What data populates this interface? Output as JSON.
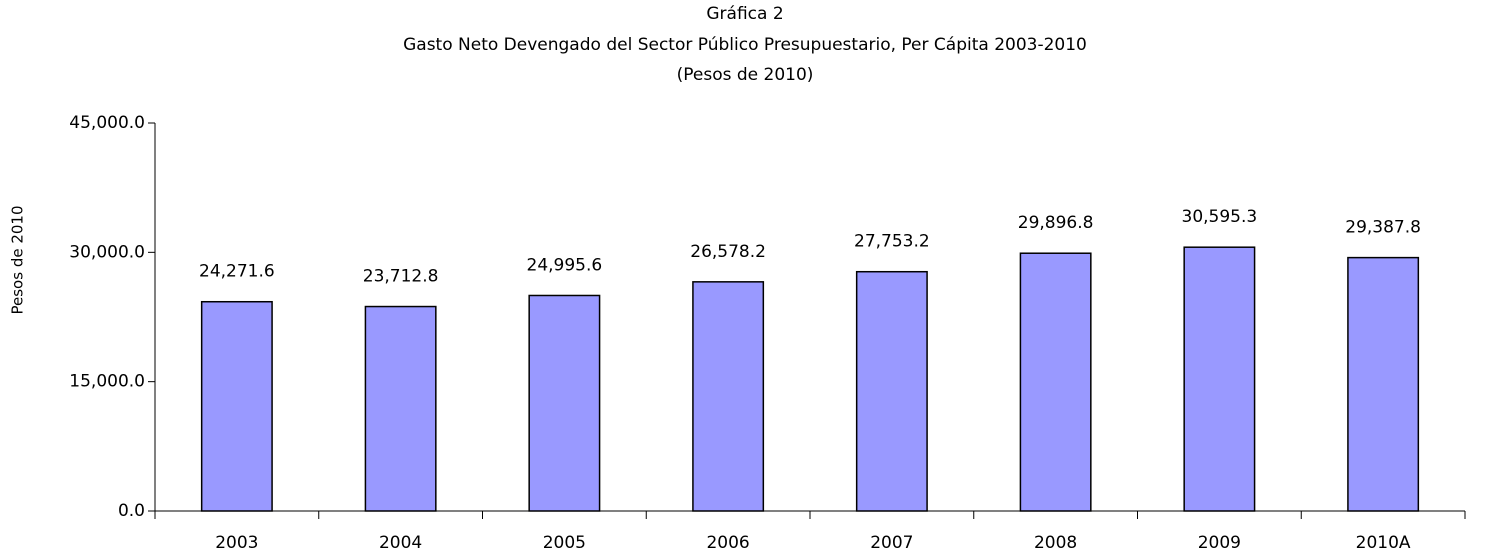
{
  "chart_data": {
    "type": "bar",
    "title": "Gráfica 2",
    "subtitle": "Gasto Neto Devengado del Sector Público Presupuestario, Per Cápita 2003-2010",
    "unit_note": "(Pesos de 2010)",
    "ylabel": "Pesos de 2010",
    "categories": [
      "2003",
      "2004",
      "2005",
      "2006",
      "2007",
      "2008",
      "2009",
      "2010A"
    ],
    "values": [
      24271.6,
      23712.8,
      24995.6,
      26578.2,
      27753.2,
      29896.8,
      30595.3,
      29387.8
    ],
    "value_labels": [
      "24,271.6",
      "23,712.8",
      "24,995.6",
      "26,578.2",
      "27,753.2",
      "29,896.8",
      "30,595.3",
      "29,387.8"
    ],
    "color": "#9999ff",
    "ylim": [
      0,
      45000
    ],
    "yticks": [
      {
        "value": 0,
        "label": "0.0"
      },
      {
        "value": 15000,
        "label": "15,000.0"
      },
      {
        "value": 30000,
        "label": "30,000.0"
      },
      {
        "value": 45000,
        "label": "45,000.0"
      }
    ],
    "grid": false
  }
}
